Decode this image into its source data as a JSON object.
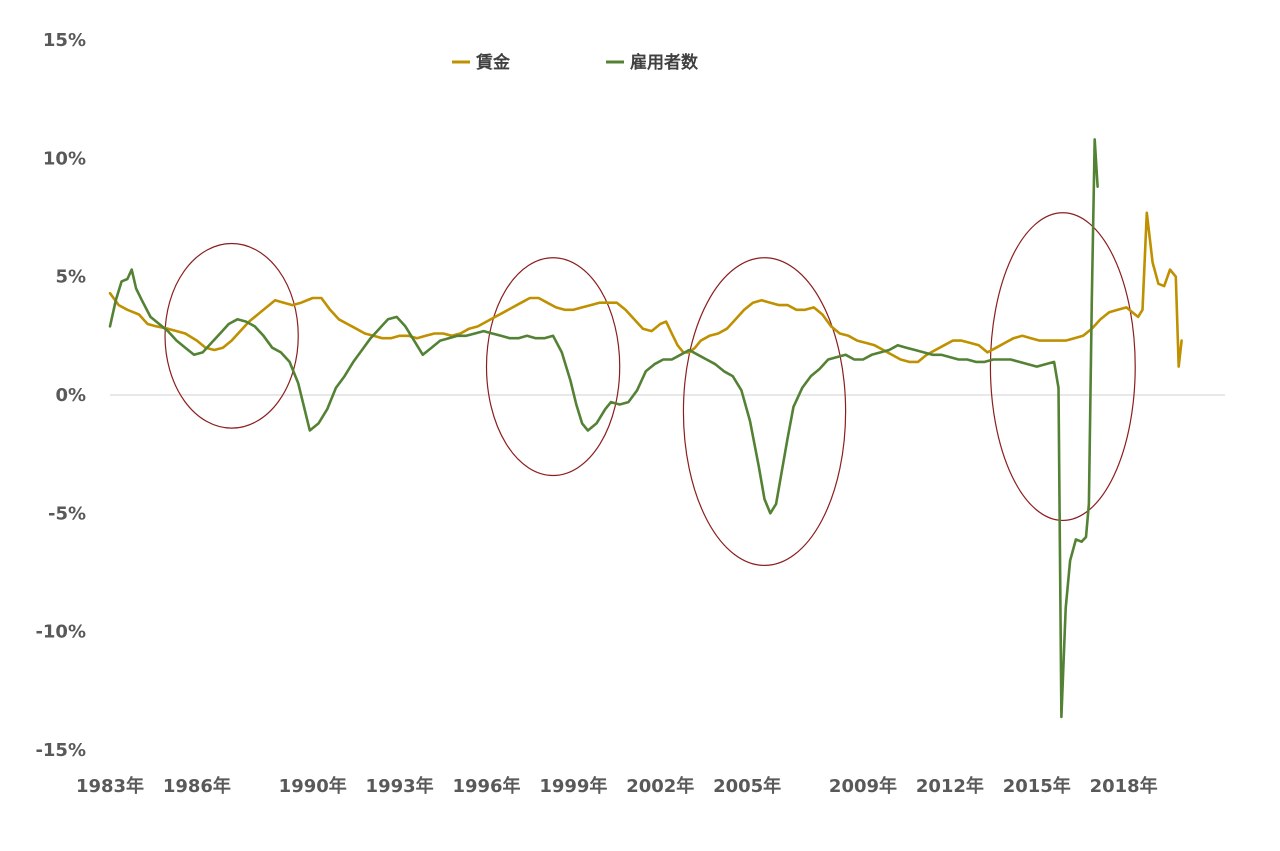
{
  "chart_data": {
    "type": "line",
    "title": "",
    "xlabel": "",
    "ylabel": "",
    "ylim": [
      -15,
      15
    ],
    "xlim": [
      1983.0,
      2021.5
    ],
    "y_ticks": [
      15,
      10,
      5,
      0,
      -5,
      -10,
      -15
    ],
    "y_tick_labels": [
      "15%",
      "10%",
      "5%",
      "0%",
      "-5%",
      "-10%",
      "-15%"
    ],
    "x_tick_labels": [
      {
        "label": "1983年",
        "x": 1983
      },
      {
        "label": "1986年",
        "x": 1986
      },
      {
        "label": "1990年",
        "x": 1990
      },
      {
        "label": "1993年",
        "x": 1993
      },
      {
        "label": "1996年",
        "x": 1996
      },
      {
        "label": "1999年",
        "x": 1999
      },
      {
        "label": "2002年",
        "x": 2002
      },
      {
        "label": "2005年",
        "x": 2005
      },
      {
        "label": "2009年",
        "x": 2009
      },
      {
        "label": "2012年",
        "x": 2012
      },
      {
        "label": "2015年",
        "x": 2015
      },
      {
        "label": "2018年",
        "x": 2018
      }
    ],
    "grid": false,
    "zero_line": true,
    "legend_position": "top-center",
    "series": [
      {
        "name": "賃金",
        "color": "#bf9000",
        "points": [
          [
            1983.0,
            4.3
          ],
          [
            1983.3,
            3.8
          ],
          [
            1983.6,
            3.6
          ],
          [
            1984.0,
            3.4
          ],
          [
            1984.3,
            3.0
          ],
          [
            1984.6,
            2.9
          ],
          [
            1985.0,
            2.8
          ],
          [
            1985.3,
            2.7
          ],
          [
            1985.6,
            2.6
          ],
          [
            1986.0,
            2.3
          ],
          [
            1986.3,
            2.0
          ],
          [
            1986.6,
            1.9
          ],
          [
            1986.9,
            2.0
          ],
          [
            1987.2,
            2.3
          ],
          [
            1987.5,
            2.7
          ],
          [
            1987.8,
            3.1
          ],
          [
            1988.1,
            3.4
          ],
          [
            1988.4,
            3.7
          ],
          [
            1988.7,
            4.0
          ],
          [
            1989.0,
            3.9
          ],
          [
            1989.3,
            3.8
          ],
          [
            1989.6,
            3.9
          ],
          [
            1990.0,
            4.1
          ],
          [
            1990.3,
            4.1
          ],
          [
            1990.6,
            3.6
          ],
          [
            1990.9,
            3.2
          ],
          [
            1991.2,
            3.0
          ],
          [
            1991.5,
            2.8
          ],
          [
            1991.8,
            2.6
          ],
          [
            1992.1,
            2.5
          ],
          [
            1992.4,
            2.4
          ],
          [
            1992.7,
            2.4
          ],
          [
            1993.0,
            2.5
          ],
          [
            1993.3,
            2.5
          ],
          [
            1993.6,
            2.4
          ],
          [
            1993.9,
            2.5
          ],
          [
            1994.2,
            2.6
          ],
          [
            1994.5,
            2.6
          ],
          [
            1994.8,
            2.5
          ],
          [
            1995.1,
            2.6
          ],
          [
            1995.4,
            2.8
          ],
          [
            1995.7,
            2.9
          ],
          [
            1996.0,
            3.1
          ],
          [
            1996.3,
            3.3
          ],
          [
            1996.6,
            3.5
          ],
          [
            1996.9,
            3.7
          ],
          [
            1997.2,
            3.9
          ],
          [
            1997.5,
            4.1
          ],
          [
            1997.8,
            4.1
          ],
          [
            1998.1,
            3.9
          ],
          [
            1998.4,
            3.7
          ],
          [
            1998.7,
            3.6
          ],
          [
            1999.0,
            3.6
          ],
          [
            1999.3,
            3.7
          ],
          [
            1999.6,
            3.8
          ],
          [
            1999.9,
            3.9
          ],
          [
            2000.2,
            3.9
          ],
          [
            2000.5,
            3.9
          ],
          [
            2000.8,
            3.6
          ],
          [
            2001.1,
            3.2
          ],
          [
            2001.4,
            2.8
          ],
          [
            2001.7,
            2.7
          ],
          [
            2002.0,
            3.0
          ],
          [
            2002.2,
            3.1
          ],
          [
            2002.4,
            2.6
          ],
          [
            2002.6,
            2.1
          ],
          [
            2002.8,
            1.8
          ],
          [
            2003.0,
            1.8
          ],
          [
            2003.2,
            2.0
          ],
          [
            2003.4,
            2.3
          ],
          [
            2003.7,
            2.5
          ],
          [
            2004.0,
            2.6
          ],
          [
            2004.3,
            2.8
          ],
          [
            2004.6,
            3.2
          ],
          [
            2004.9,
            3.6
          ],
          [
            2005.2,
            3.9
          ],
          [
            2005.5,
            4.0
          ],
          [
            2005.8,
            3.9
          ],
          [
            2006.1,
            3.8
          ],
          [
            2006.4,
            3.8
          ],
          [
            2006.7,
            3.6
          ],
          [
            2007.0,
            3.6
          ],
          [
            2007.3,
            3.7
          ],
          [
            2007.6,
            3.4
          ],
          [
            2007.9,
            2.9
          ],
          [
            2008.2,
            2.6
          ],
          [
            2008.5,
            2.5
          ],
          [
            2008.8,
            2.3
          ],
          [
            2009.1,
            2.2
          ],
          [
            2009.4,
            2.1
          ],
          [
            2009.7,
            1.9
          ],
          [
            2010.0,
            1.7
          ],
          [
            2010.3,
            1.5
          ],
          [
            2010.6,
            1.4
          ],
          [
            2010.9,
            1.4
          ],
          [
            2011.2,
            1.7
          ],
          [
            2011.5,
            1.9
          ],
          [
            2011.8,
            2.1
          ],
          [
            2012.1,
            2.3
          ],
          [
            2012.4,
            2.3
          ],
          [
            2012.7,
            2.2
          ],
          [
            2013.0,
            2.1
          ],
          [
            2013.3,
            1.8
          ],
          [
            2013.6,
            2.0
          ],
          [
            2013.9,
            2.2
          ],
          [
            2014.2,
            2.4
          ],
          [
            2014.5,
            2.5
          ],
          [
            2014.8,
            2.4
          ],
          [
            2015.1,
            2.3
          ],
          [
            2015.4,
            2.3
          ],
          [
            2015.7,
            2.3
          ],
          [
            2016.0,
            2.3
          ],
          [
            2016.3,
            2.4
          ],
          [
            2016.6,
            2.5
          ],
          [
            2016.9,
            2.8
          ],
          [
            2017.2,
            3.2
          ],
          [
            2017.5,
            3.5
          ],
          [
            2017.8,
            3.6
          ],
          [
            2018.1,
            3.7
          ],
          [
            2018.3,
            3.5
          ],
          [
            2018.5,
            3.3
          ],
          [
            2018.65,
            3.6
          ],
          [
            2018.8,
            7.7
          ],
          [
            2019.0,
            5.6
          ],
          [
            2019.2,
            4.7
          ],
          [
            2019.4,
            4.6
          ],
          [
            2019.6,
            5.3
          ],
          [
            2019.8,
            5.0
          ],
          [
            2019.9,
            1.2
          ],
          [
            2020.0,
            2.3
          ]
        ]
      },
      {
        "name": "雇用者数",
        "color": "#548235",
        "points": [
          [
            1983.0,
            2.9
          ],
          [
            1983.2,
            4.0
          ],
          [
            1983.4,
            4.8
          ],
          [
            1983.6,
            4.9
          ],
          [
            1983.75,
            5.3
          ],
          [
            1983.9,
            4.5
          ],
          [
            1984.1,
            4.0
          ],
          [
            1984.4,
            3.3
          ],
          [
            1984.7,
            3.0
          ],
          [
            1985.0,
            2.7
          ],
          [
            1985.3,
            2.3
          ],
          [
            1985.6,
            2.0
          ],
          [
            1985.9,
            1.7
          ],
          [
            1986.2,
            1.8
          ],
          [
            1986.5,
            2.2
          ],
          [
            1986.8,
            2.6
          ],
          [
            1987.1,
            3.0
          ],
          [
            1987.4,
            3.2
          ],
          [
            1987.7,
            3.1
          ],
          [
            1988.0,
            2.9
          ],
          [
            1988.3,
            2.5
          ],
          [
            1988.6,
            2.0
          ],
          [
            1988.9,
            1.8
          ],
          [
            1989.2,
            1.4
          ],
          [
            1989.5,
            0.5
          ],
          [
            1989.7,
            -0.5
          ],
          [
            1989.9,
            -1.5
          ],
          [
            1990.2,
            -1.2
          ],
          [
            1990.5,
            -0.6
          ],
          [
            1990.8,
            0.3
          ],
          [
            1991.1,
            0.8
          ],
          [
            1991.4,
            1.4
          ],
          [
            1991.7,
            1.9
          ],
          [
            1992.0,
            2.4
          ],
          [
            1992.3,
            2.8
          ],
          [
            1992.6,
            3.2
          ],
          [
            1992.9,
            3.3
          ],
          [
            1993.2,
            2.9
          ],
          [
            1993.5,
            2.3
          ],
          [
            1993.8,
            1.7
          ],
          [
            1994.1,
            2.0
          ],
          [
            1994.4,
            2.3
          ],
          [
            1994.7,
            2.4
          ],
          [
            1995.0,
            2.5
          ],
          [
            1995.3,
            2.5
          ],
          [
            1995.6,
            2.6
          ],
          [
            1995.9,
            2.7
          ],
          [
            1996.2,
            2.6
          ],
          [
            1996.5,
            2.5
          ],
          [
            1996.8,
            2.4
          ],
          [
            1997.1,
            2.4
          ],
          [
            1997.4,
            2.5
          ],
          [
            1997.7,
            2.4
          ],
          [
            1998.0,
            2.4
          ],
          [
            1998.3,
            2.5
          ],
          [
            1998.6,
            1.8
          ],
          [
            1998.9,
            0.6
          ],
          [
            1999.1,
            -0.4
          ],
          [
            1999.3,
            -1.2
          ],
          [
            1999.5,
            -1.5
          ],
          [
            1999.8,
            -1.2
          ],
          [
            2000.1,
            -0.6
          ],
          [
            2000.3,
            -0.3
          ],
          [
            2000.6,
            -0.4
          ],
          [
            2000.9,
            -0.3
          ],
          [
            2001.2,
            0.2
          ],
          [
            2001.5,
            1.0
          ],
          [
            2001.8,
            1.3
          ],
          [
            2002.1,
            1.5
          ],
          [
            2002.4,
            1.5
          ],
          [
            2002.7,
            1.7
          ],
          [
            2003.0,
            1.9
          ],
          [
            2003.3,
            1.7
          ],
          [
            2003.6,
            1.5
          ],
          [
            2003.9,
            1.3
          ],
          [
            2004.2,
            1.0
          ],
          [
            2004.5,
            0.8
          ],
          [
            2004.8,
            0.2
          ],
          [
            2005.1,
            -1.1
          ],
          [
            2005.4,
            -3.0
          ],
          [
            2005.6,
            -4.4
          ],
          [
            2005.8,
            -5.0
          ],
          [
            2006.0,
            -4.6
          ],
          [
            2006.2,
            -3.2
          ],
          [
            2006.4,
            -1.8
          ],
          [
            2006.6,
            -0.5
          ],
          [
            2006.9,
            0.3
          ],
          [
            2007.2,
            0.8
          ],
          [
            2007.5,
            1.1
          ],
          [
            2007.8,
            1.5
          ],
          [
            2008.1,
            1.6
          ],
          [
            2008.4,
            1.7
          ],
          [
            2008.7,
            1.5
          ],
          [
            2009.0,
            1.5
          ],
          [
            2009.3,
            1.7
          ],
          [
            2009.6,
            1.8
          ],
          [
            2009.9,
            1.9
          ],
          [
            2010.2,
            2.1
          ],
          [
            2010.5,
            2.0
          ],
          [
            2010.8,
            1.9
          ],
          [
            2011.1,
            1.8
          ],
          [
            2011.4,
            1.7
          ],
          [
            2011.7,
            1.7
          ],
          [
            2012.0,
            1.6
          ],
          [
            2012.3,
            1.5
          ],
          [
            2012.6,
            1.5
          ],
          [
            2012.9,
            1.4
          ],
          [
            2013.2,
            1.4
          ],
          [
            2013.5,
            1.5
          ],
          [
            2013.8,
            1.5
          ],
          [
            2014.1,
            1.5
          ],
          [
            2014.4,
            1.4
          ],
          [
            2014.7,
            1.3
          ],
          [
            2015.0,
            1.2
          ],
          [
            2015.3,
            1.3
          ],
          [
            2015.6,
            1.4
          ],
          [
            2015.75,
            0.3
          ],
          [
            2015.85,
            -13.6
          ],
          [
            2016.0,
            -9.0
          ],
          [
            2016.15,
            -7.0
          ],
          [
            2016.35,
            -6.1
          ],
          [
            2016.55,
            -6.2
          ],
          [
            2016.7,
            -6.0
          ],
          [
            2016.8,
            -4.6
          ],
          [
            2016.9,
            4.0
          ],
          [
            2017.0,
            10.8
          ],
          [
            2017.1,
            8.8
          ]
        ]
      }
    ],
    "annotations": [
      {
        "type": "ellipse",
        "cx": 1987.2,
        "cy": 2.5,
        "rx": 2.3,
        "ry": 3.9
      },
      {
        "type": "ellipse",
        "cx": 1998.3,
        "cy": 1.2,
        "rx": 2.3,
        "ry": 4.6
      },
      {
        "type": "ellipse",
        "cx": 2005.6,
        "cy": -0.7,
        "rx": 2.8,
        "ry": 6.5
      },
      {
        "type": "ellipse",
        "cx": 2015.9,
        "cy": 1.2,
        "rx": 2.5,
        "ry": 6.5
      }
    ]
  }
}
